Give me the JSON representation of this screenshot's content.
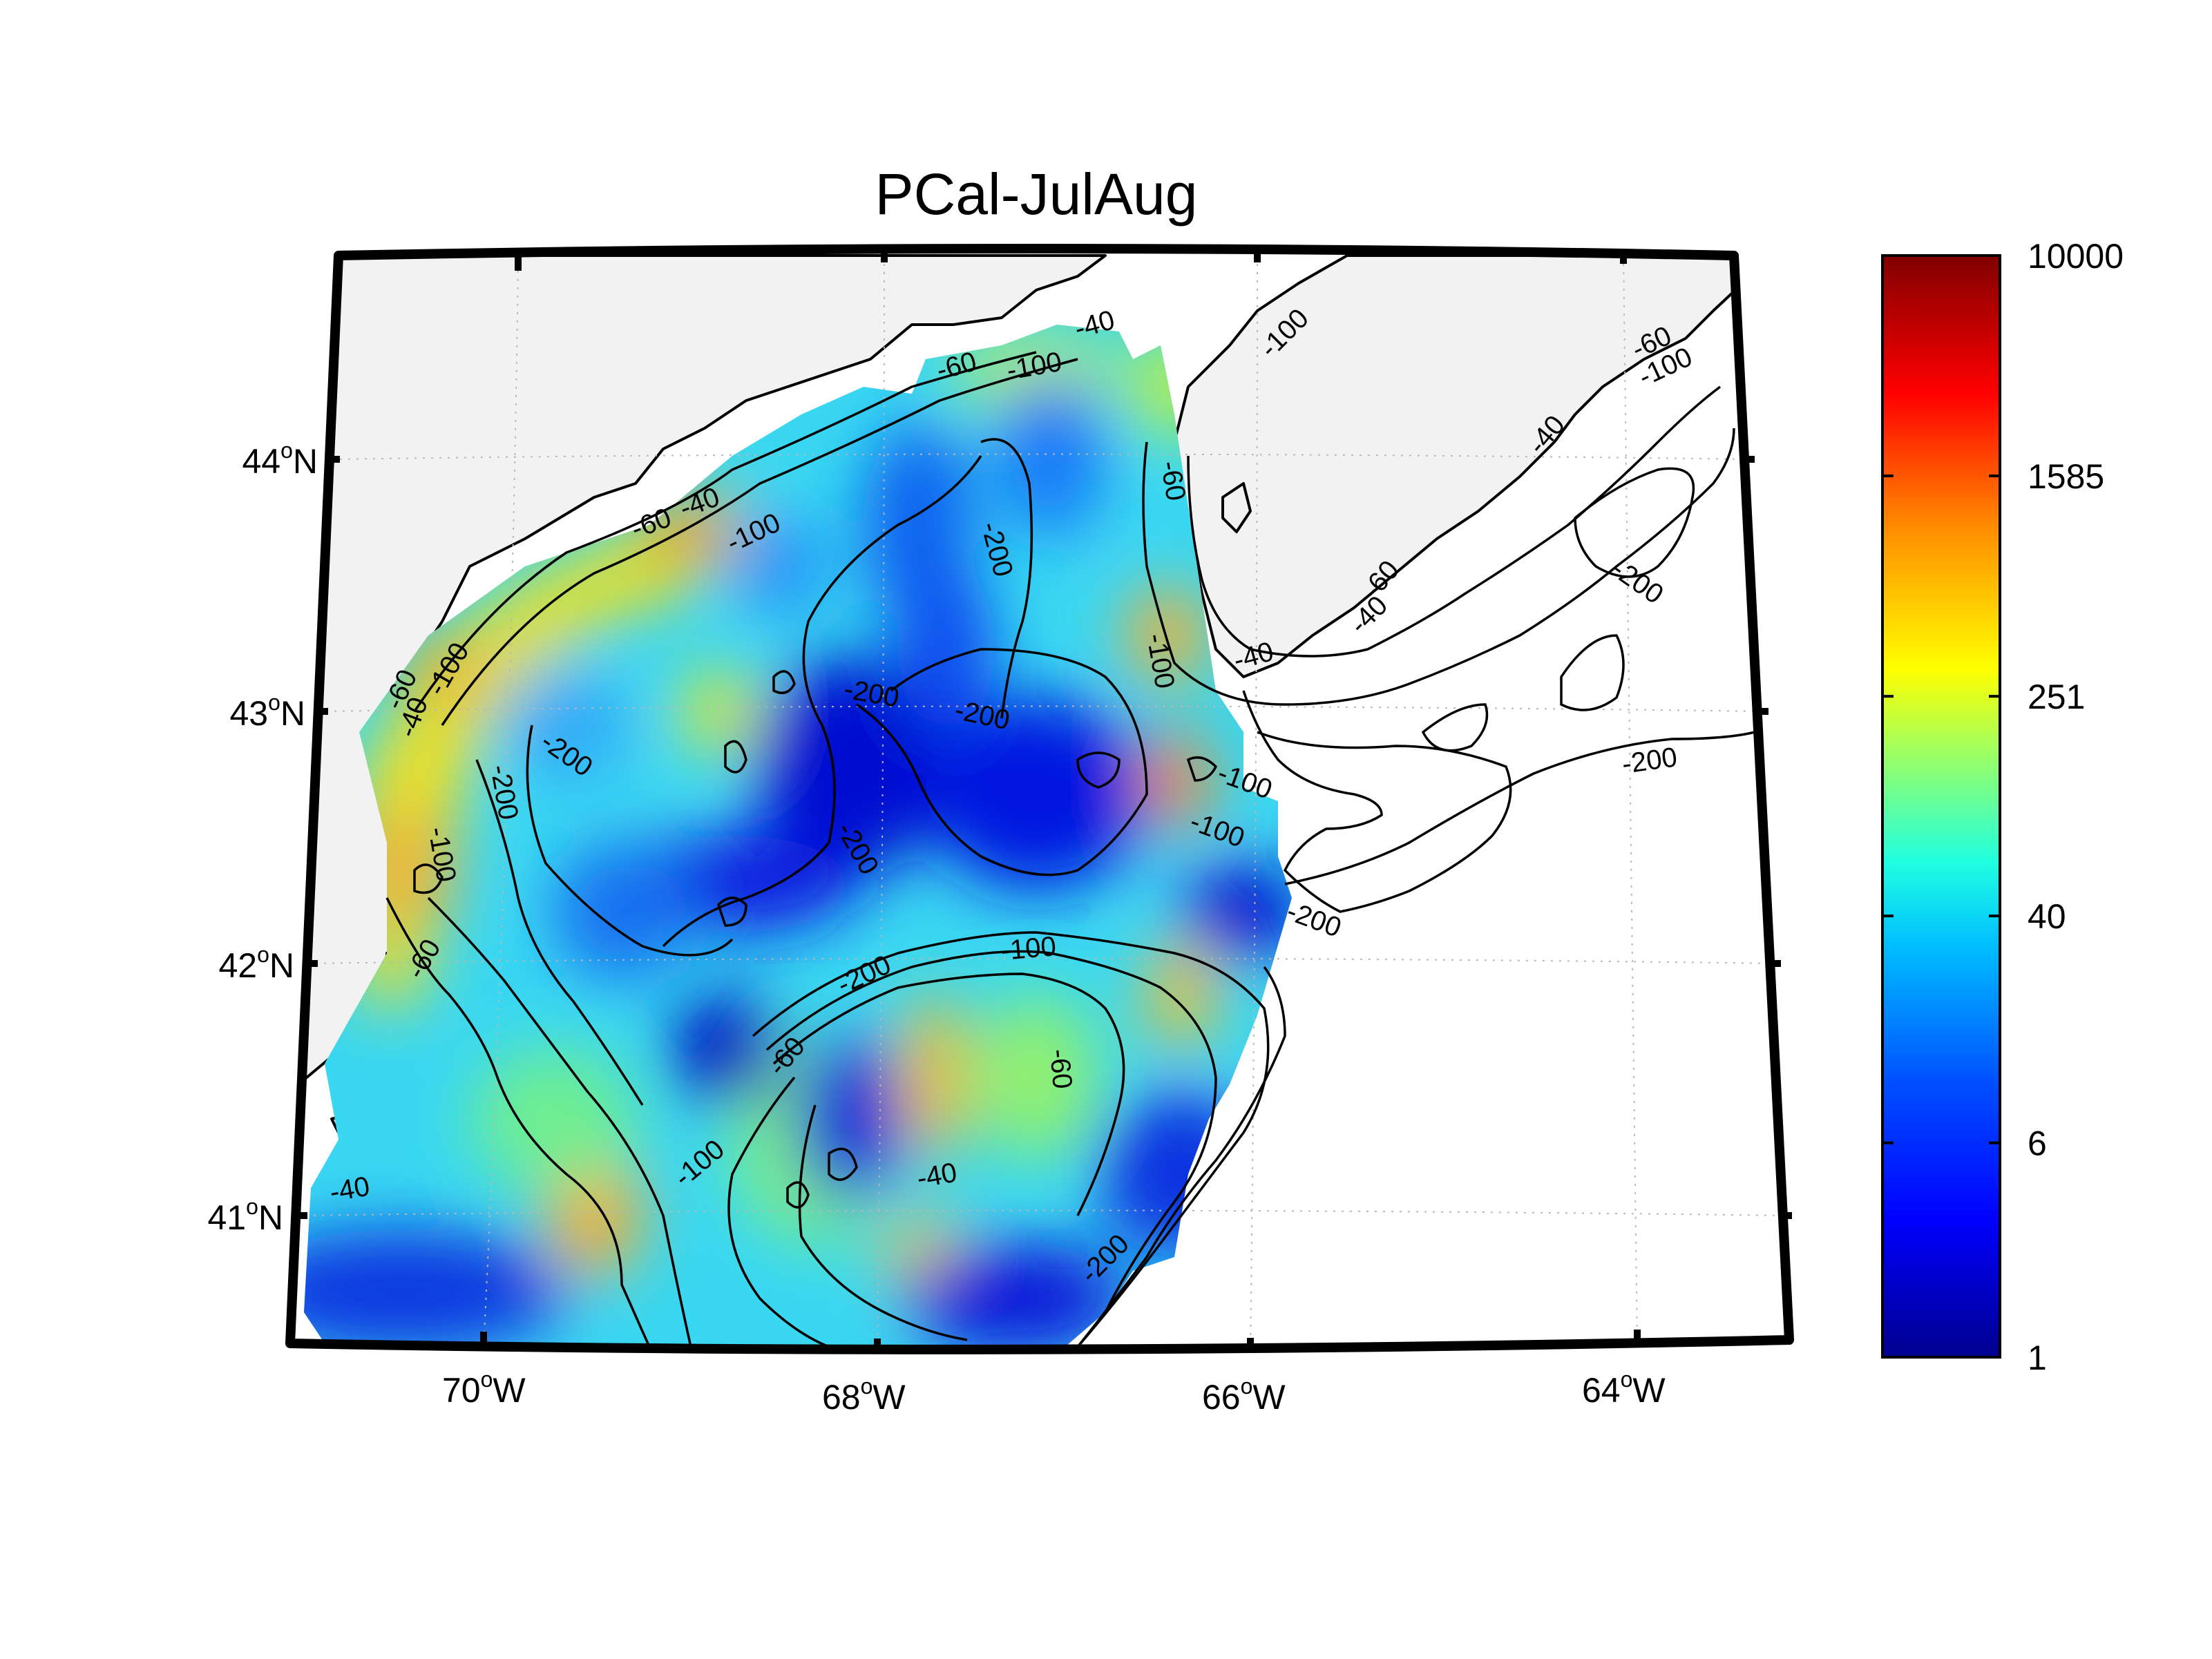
{
  "title": "PCal-JulAug",
  "map": {
    "longitude_ticks": [
      {
        "deg": "70",
        "hemi": "W"
      },
      {
        "deg": "68",
        "hemi": "W"
      },
      {
        "deg": "66",
        "hemi": "W"
      },
      {
        "deg": "64",
        "hemi": "W"
      }
    ],
    "latitude_ticks": [
      {
        "deg": "44",
        "hemi": "N"
      },
      {
        "deg": "43",
        "hemi": "N"
      },
      {
        "deg": "42",
        "hemi": "N"
      },
      {
        "deg": "41",
        "hemi": "N"
      }
    ],
    "degree_symbol": "o",
    "land_color": "#f2f2f2",
    "grid": "dotted",
    "contour_labels": [
      "-40",
      "-60",
      "-100",
      "-200",
      "-40",
      "-100",
      "-60",
      "-100",
      "-200",
      "-200",
      "-200",
      "-100",
      "-100",
      "-100",
      "-200",
      "-60",
      "-40",
      "-100",
      "-200",
      "-40",
      "-60",
      "-100",
      "-200",
      "-40",
      "-60",
      "-100",
      "-200",
      "-40",
      "-60",
      "-200",
      "-60",
      "-40",
      "-100",
      "-60",
      "-200",
      "-100",
      "-200",
      "-60",
      "-40"
    ]
  },
  "colorbar": {
    "scale": "log",
    "min": 1,
    "max": 10000,
    "tick_labels": [
      "10000",
      "1585",
      "251",
      "40",
      "6",
      "1"
    ],
    "colormap": "jet",
    "colors": [
      "#00008f",
      "#0000ff",
      "#0080ff",
      "#00ffff",
      "#80ff80",
      "#ffff00",
      "#ff8000",
      "#ff0000",
      "#800000"
    ]
  }
}
